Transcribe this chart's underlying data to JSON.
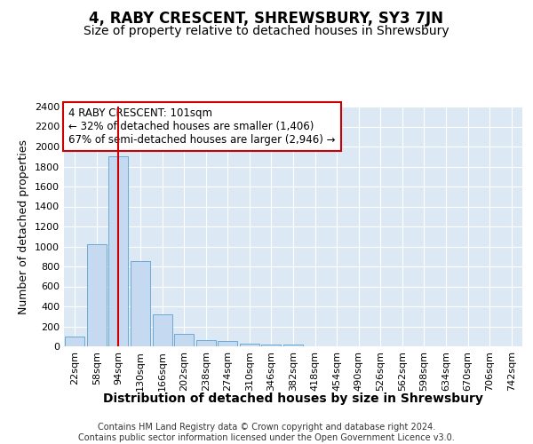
{
  "title": "4, RABY CRESCENT, SHREWSBURY, SY3 7JN",
  "subtitle": "Size of property relative to detached houses in Shrewsbury",
  "xlabel": "Distribution of detached houses by size in Shrewsbury",
  "ylabel": "Number of detached properties",
  "footer_line1": "Contains HM Land Registry data © Crown copyright and database right 2024.",
  "footer_line2": "Contains public sector information licensed under the Open Government Licence v3.0.",
  "bar_labels": [
    "22sqm",
    "58sqm",
    "94sqm",
    "130sqm",
    "166sqm",
    "202sqm",
    "238sqm",
    "274sqm",
    "310sqm",
    "346sqm",
    "382sqm",
    "418sqm",
    "454sqm",
    "490sqm",
    "526sqm",
    "562sqm",
    "598sqm",
    "634sqm",
    "670sqm",
    "706sqm",
    "742sqm"
  ],
  "bar_values": [
    100,
    1020,
    1900,
    855,
    320,
    125,
    60,
    52,
    30,
    20,
    20,
    0,
    0,
    0,
    0,
    0,
    0,
    0,
    0,
    0,
    0
  ],
  "bar_color": "#c5d9f0",
  "bar_edge_color": "#6aaad4",
  "background_color": "#dce9f5",
  "grid_color": "#ffffff",
  "vline_x": 2,
  "vline_color": "#cc0000",
  "annotation_text": "4 RABY CRESCENT: 101sqm\n← 32% of detached houses are smaller (1,406)\n67% of semi-detached houses are larger (2,946) →",
  "annotation_box_color": "#cc0000",
  "ylim": [
    0,
    2400
  ],
  "yticks": [
    0,
    200,
    400,
    600,
    800,
    1000,
    1200,
    1400,
    1600,
    1800,
    2000,
    2200,
    2400
  ],
  "title_fontsize": 12,
  "subtitle_fontsize": 10,
  "annotation_fontsize": 8.5,
  "ylabel_fontsize": 9,
  "xlabel_fontsize": 10,
  "tick_fontsize": 8,
  "footer_fontsize": 7
}
